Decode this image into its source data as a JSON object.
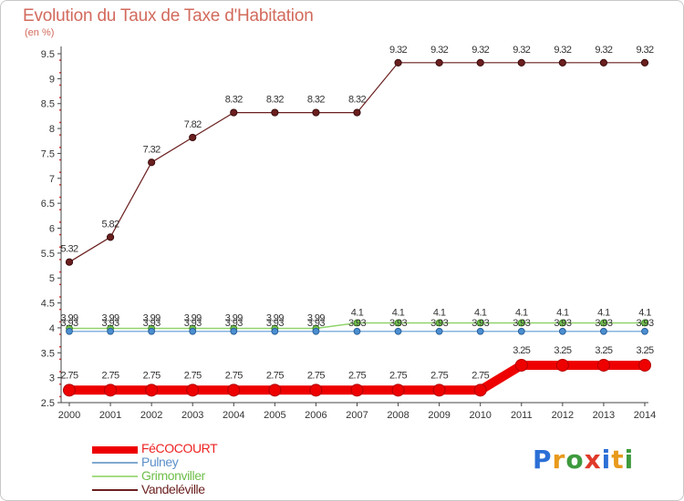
{
  "chart_data": {
    "type": "line",
    "title": "Evolution du Taux de Taxe d'Habitation",
    "subtitle": "(en %)",
    "xlabel": "",
    "ylabel": "",
    "ylim": [
      2.5,
      9.5
    ],
    "y_ticks": [
      "2.5",
      "3",
      "3.5",
      "4",
      "4.5",
      "5",
      "5.5",
      "6",
      "6.5",
      "7",
      "7.5",
      "8",
      "8.5",
      "9",
      "9.5"
    ],
    "categories": [
      "2000",
      "2001",
      "2002",
      "2003",
      "2004",
      "2005",
      "2006",
      "2007",
      "2008",
      "2009",
      "2010",
      "2011",
      "2012",
      "2013",
      "2014"
    ],
    "series": [
      {
        "name": "Vandeléville",
        "color": "#6b1f1f",
        "values": [
          5.32,
          5.82,
          7.32,
          7.82,
          8.32,
          8.32,
          8.32,
          8.32,
          9.32,
          9.32,
          9.32,
          9.32,
          9.32,
          9.32,
          9.32
        ],
        "labels": [
          "5.32",
          "5.82",
          "7.32",
          "7.82",
          "8.32",
          "8.32",
          "8.32",
          "8.32",
          "9.32",
          "9.32",
          "9.32",
          "9.32",
          "9.32",
          "9.32",
          "9.32"
        ]
      },
      {
        "name": "Grimonviller",
        "color": "#8fd46a",
        "values": [
          3.99,
          3.99,
          3.99,
          3.99,
          3.99,
          3.99,
          3.99,
          4.1,
          4.1,
          4.1,
          4.1,
          4.1,
          4.1,
          4.1,
          4.1
        ],
        "labels": [
          "3.99",
          "3.99",
          "3.99",
          "3.99",
          "3.99",
          "3.99",
          "3.99",
          "4.1",
          "4.1",
          "4.1",
          "4.1",
          "4.1",
          "4.1",
          "4.1",
          "4.1"
        ]
      },
      {
        "name": "Pulney",
        "color": "#5b9bd5",
        "values": [
          3.93,
          3.93,
          3.93,
          3.93,
          3.93,
          3.93,
          3.93,
          3.93,
          3.93,
          3.93,
          3.93,
          3.93,
          3.93,
          3.93,
          3.93
        ],
        "labels": [
          "3.93",
          "3.93",
          "3.93",
          "3.93",
          "3.93",
          "3.93",
          "3.93",
          "3.93",
          "3.93",
          "3.93",
          "3.93",
          "3.93",
          "3.93",
          "3.93",
          "3.93"
        ]
      },
      {
        "name": "FéCOCOURT",
        "color": "#ee0000",
        "values": [
          2.75,
          2.75,
          2.75,
          2.75,
          2.75,
          2.75,
          2.75,
          2.75,
          2.75,
          2.75,
          2.75,
          3.25,
          3.25,
          3.25,
          3.25
        ],
        "labels": [
          "2.75",
          "2.75",
          "2.75",
          "2.75",
          "2.75",
          "2.75",
          "2.75",
          "2.75",
          "2.75",
          "2.75",
          "2.75",
          "3.25",
          "3.25",
          "3.25",
          "3.25"
        ]
      }
    ],
    "legend": {
      "position": "bottom-left",
      "items": [
        {
          "name": "FéCOCOURT",
          "color": "#ee0000",
          "label_color": "#ee2222"
        },
        {
          "name": "Pulney",
          "color": "#7fa9d0",
          "label_color": "#5b8fc8"
        },
        {
          "name": "Grimonviller",
          "color": "#a6dc84",
          "label_color": "#6fbf4a"
        },
        {
          "name": "Vandeléville",
          "color": "#6b1f1f",
          "label_color": "#6b1f1f"
        }
      ]
    }
  },
  "branding": {
    "logo_letters": [
      "P",
      "r",
      "o",
      "x",
      "i",
      "t",
      "i"
    ],
    "logo_colors": [
      "#2b6fd6",
      "#e89a1c",
      "#3d9a3d",
      "#e03a2a",
      "#2b6fd6",
      "#e89a1c",
      "#3d9a3d"
    ]
  }
}
